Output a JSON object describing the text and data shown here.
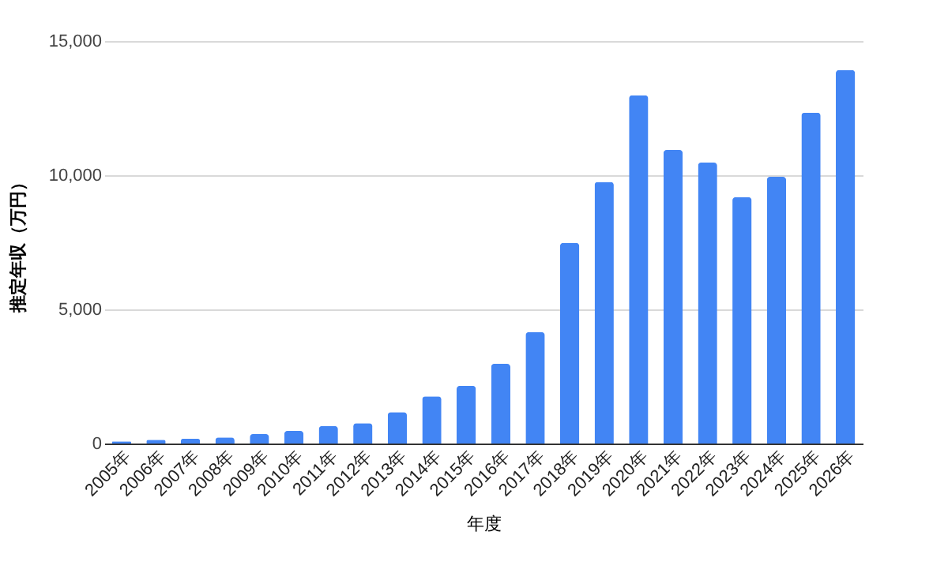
{
  "chart_data": {
    "type": "bar",
    "xlabel": "年度",
    "ylabel": "推定年収（万円）",
    "categories": [
      "2005年",
      "2006年",
      "2007年",
      "2008年",
      "2009年",
      "2010年",
      "2011年",
      "2012年",
      "2013年",
      "2014年",
      "2015年",
      "2016年",
      "2017年",
      "2018年",
      "2019年",
      "2020年",
      "2021年",
      "2022年",
      "2023年",
      "2024年",
      "2025年",
      "2026年"
    ],
    "values": [
      80,
      140,
      180,
      230,
      350,
      470,
      650,
      760,
      1170,
      1760,
      2150,
      2970,
      4150,
      7480,
      9750,
      12980,
      10940,
      10470,
      9180,
      9940,
      12330,
      13920
    ],
    "color": "#4285f4",
    "ylim": [
      0,
      15000
    ],
    "yticks": [
      0,
      {
        "value": 5000,
        "label": "5,000"
      },
      {
        "value": 10000,
        "label": "10,000"
      },
      {
        "value": 15000,
        "label": "15,000"
      }
    ],
    "grid": "y"
  }
}
